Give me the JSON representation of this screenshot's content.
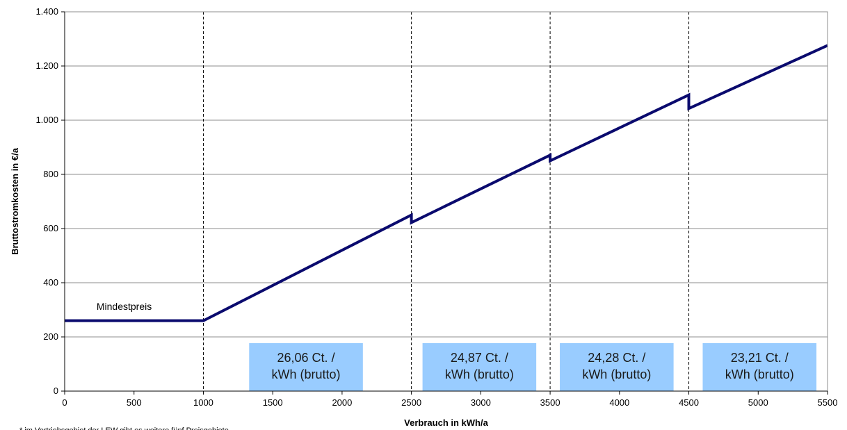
{
  "chart_data": {
    "type": "line",
    "xlabel": "Verbrauch in kWh/a",
    "ylabel": "Bruttostromkosten in €/a",
    "xlim": [
      0,
      5500
    ],
    "ylim": [
      0,
      1400
    ],
    "x_ticks": [
      0,
      500,
      1000,
      1500,
      2000,
      2500,
      3000,
      3500,
      4000,
      4500,
      5000,
      5500
    ],
    "x_tick_labels": [
      "0",
      "500",
      "1000",
      "1500",
      "2000",
      "2500",
      "3000",
      "3500",
      "4000",
      "4500",
      "5000",
      "5500"
    ],
    "y_ticks": [
      0,
      200,
      400,
      600,
      800,
      1000,
      1200,
      1400
    ],
    "y_tick_labels": [
      "0",
      "200",
      "400",
      "600",
      "800",
      "1.000",
      "1.200",
      "1.400"
    ],
    "grid": "horizontal",
    "vertical_reference_lines": [
      1000,
      2500,
      3500,
      4500
    ],
    "line_color": "#0a0a6e",
    "series": [
      {
        "x": [
          0,
          1000,
          2500,
          2500,
          3500,
          3500,
          4500,
          4500,
          5500
        ],
        "y": [
          260,
          260,
          650,
          622,
          871,
          850,
          1093,
          1043,
          1276
        ]
      }
    ],
    "annotations": [
      {
        "text": "Mindestpreis",
        "x": 230,
        "y": 300
      }
    ],
    "price_boxes": [
      {
        "line1": "26,06 Ct. /",
        "line2": "kWh (brutto)",
        "x_start": 1330,
        "x_end": 2150
      },
      {
        "line1": "24,87 Ct. /",
        "line2": "kWh (brutto)",
        "x_start": 2580,
        "x_end": 3400
      },
      {
        "line1": "24,28 Ct. /",
        "line2": "kWh (brutto)",
        "x_start": 3570,
        "x_end": 4390
      },
      {
        "line1": "23,21 Ct. /",
        "line2": "kWh (brutto)",
        "x_start": 4600,
        "x_end": 5420
      }
    ],
    "box_color": "#99ccff",
    "footnote": "* im Vertriebsgebiet der LEW gibt es weitere fünf Preisgebiete"
  }
}
